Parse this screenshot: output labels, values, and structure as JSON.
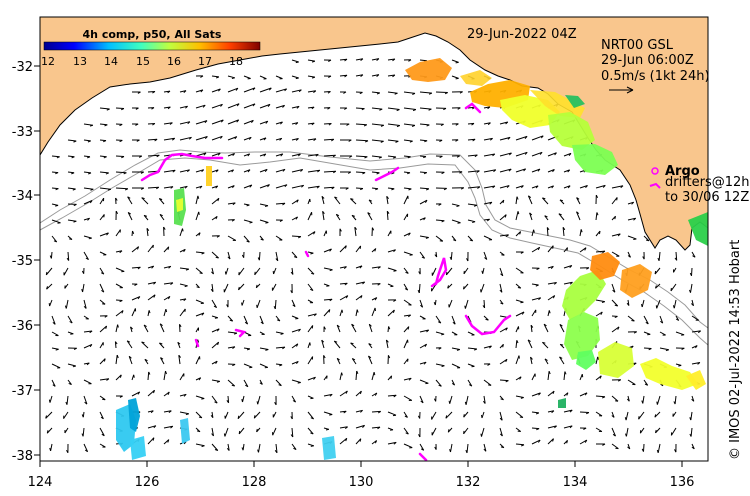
{
  "colorbar": {
    "title": "4h comp, p50, All Sats",
    "ticks": [
      "12",
      "13",
      "14",
      "15",
      "16",
      "17",
      "18"
    ]
  },
  "header": {
    "date": "29-Jun-2022 04Z"
  },
  "model_info": {
    "model": "NRT00 GSL",
    "time": "29-Jun 06:00Z",
    "scale": "0.5m/s (1kt 24h)"
  },
  "legend": {
    "argo": "Argo",
    "drifters": "drifters@12h",
    "to_date": "to 30/06 12Z"
  },
  "axes": {
    "x_ticks": [
      "124",
      "126",
      "128",
      "130",
      "132",
      "134",
      "136"
    ],
    "y_ticks": [
      "-32",
      "-33",
      "-34",
      "-35",
      "-36",
      "-37",
      "-38"
    ]
  },
  "credit": "© IMOS 02-Jul-2022 14:53 Hobart",
  "colors": {
    "land": "#f9c68d",
    "argo": "#ff00ff",
    "contour": "#9a9a9a"
  }
}
